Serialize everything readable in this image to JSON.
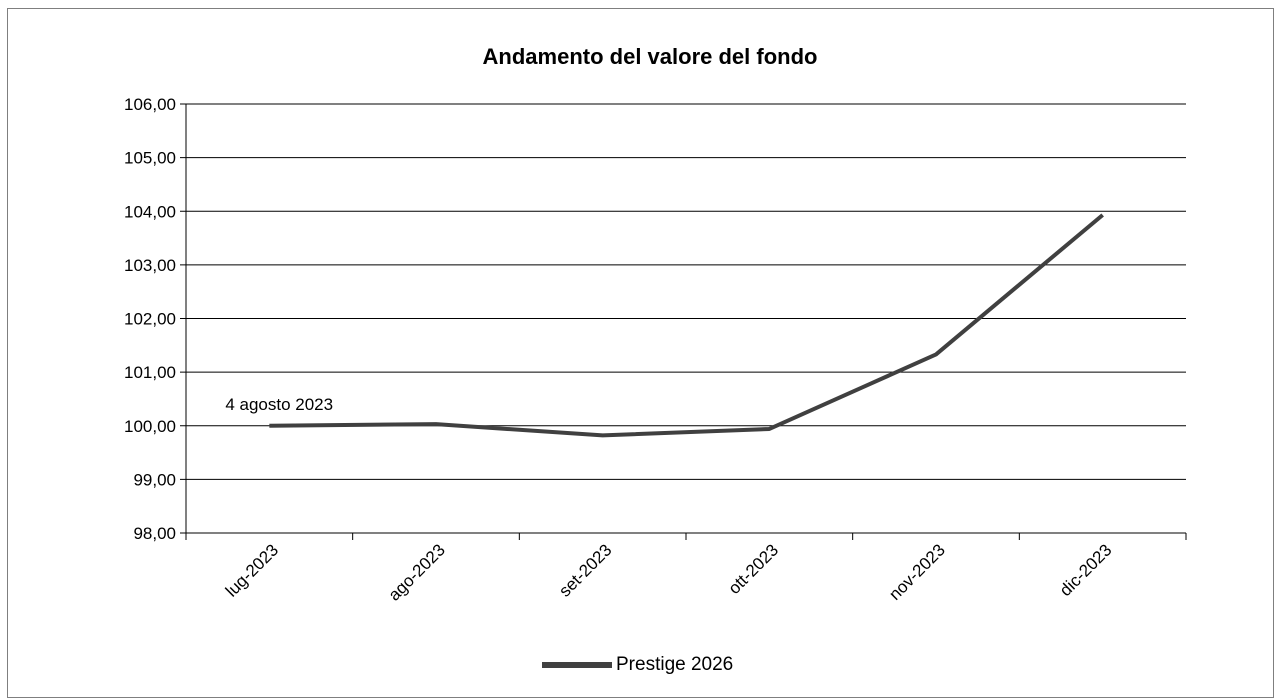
{
  "chart_data": {
    "type": "line",
    "title": "Andamento del valore del fondo",
    "xlabel": "",
    "ylabel": "",
    "categories": [
      "lug-2023",
      "ago-2023",
      "set-2023",
      "ott-2023",
      "nov-2023",
      "dic-2023"
    ],
    "series": [
      {
        "name": "Prestige 2026",
        "color": "#404040",
        "points": [
          {
            "x": "lug-2023",
            "y": 100.0
          },
          {
            "x": "ago-2023",
            "y": 100.03
          },
          {
            "x": "set-2023",
            "y": 99.82
          },
          {
            "x": "ott-2023",
            "y": 99.94
          },
          {
            "x": "nov-2023",
            "y": 101.33
          },
          {
            "x": "dic-2023",
            "y": 103.93
          }
        ]
      }
    ],
    "ylim": [
      98,
      106
    ],
    "yticks": [
      "98,00",
      "99,00",
      "100,00",
      "101,00",
      "102,00",
      "103,00",
      "104,00",
      "105,00",
      "106,00"
    ],
    "grid": "horizontal",
    "legend_position": "bottom",
    "annotations": [
      {
        "text": "4 agosto 2023",
        "x": "lug-2023",
        "y": 100.0
      }
    ]
  }
}
